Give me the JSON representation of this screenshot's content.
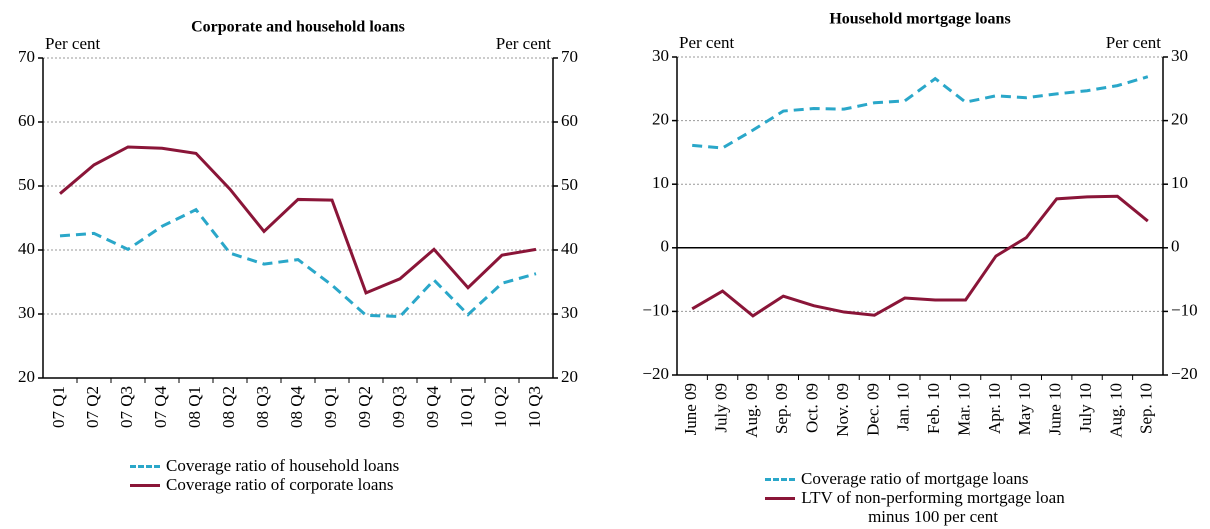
{
  "chart_data": [
    {
      "type": "line",
      "title": "Corporate and household loans",
      "y_axis_label": "Per cent",
      "y2_axis_label": "Per cent",
      "categories": [
        "07 Q1",
        "07 Q2",
        "07 Q3",
        "07 Q4",
        "08 Q1",
        "08 Q2",
        "08 Q3",
        "08 Q4",
        "09 Q1",
        "09 Q2",
        "09 Q3",
        "09 Q4",
        "10 Q1",
        "10 Q2",
        "10 Q3"
      ],
      "series": [
        {
          "name": "Coverage ratio of household loans",
          "color": "#2aa7c9",
          "dashed": true,
          "values": [
            42.2,
            42.6,
            40.1,
            43.7,
            46.3,
            39.5,
            37.8,
            38.5,
            34.5,
            29.8,
            29.6,
            35.3,
            29.9,
            34.8,
            36.3
          ]
        },
        {
          "name": "Coverage ratio of corporate loans",
          "color": "#8a1538",
          "dashed": false,
          "values": [
            48.8,
            53.3,
            56.1,
            55.9,
            55.1,
            49.5,
            42.9,
            47.9,
            47.8,
            33.3,
            35.5,
            40.1,
            34.1,
            39.2,
            40.1
          ]
        }
      ],
      "ylim": [
        20,
        70
      ],
      "yticks": [
        20,
        30,
        40,
        50,
        60,
        70
      ],
      "y2lim": [
        20,
        70
      ],
      "y2ticks": [
        20,
        30,
        40,
        50,
        60,
        70
      ],
      "grid": true
    },
    {
      "type": "line",
      "title": "Household mortgage loans",
      "y_axis_label": "Per cent",
      "y2_axis_label": "Per cent",
      "categories": [
        "June 09",
        "July 09",
        "Aug. 09",
        "Sep. 09",
        "Oct. 09",
        "Nov. 09",
        "Dec. 09",
        "Jan. 10",
        "Feb. 10",
        "Mar. 10",
        "Apr. 10",
        "May 10",
        "June 10",
        "July 10",
        "Aug. 10",
        "Sep. 10"
      ],
      "series": [
        {
          "name": "Coverage ratio of mortgage loans",
          "color": "#2aa7c9",
          "dashed": true,
          "values": [
            16.1,
            15.7,
            18.5,
            21.5,
            21.9,
            21.8,
            22.8,
            23.1,
            26.6,
            22.9,
            23.9,
            23.6,
            24.2,
            24.7,
            25.5,
            26.9
          ]
        },
        {
          "name": "LTV of non-performing mortgage loan minus 100 per cent",
          "color": "#8a1538",
          "dashed": false,
          "values": [
            -9.6,
            -6.8,
            -10.7,
            -7.6,
            -9.1,
            -10.1,
            -10.6,
            -7.9,
            -8.2,
            -8.2,
            -1.3,
            1.6,
            7.7,
            8.0,
            8.1,
            4.2
          ]
        }
      ],
      "ylim": [
        -20,
        30
      ],
      "yticks": [
        {
          "value": -20,
          "label": "−20"
        },
        {
          "value": -10,
          "label": "−10"
        },
        0,
        10,
        20,
        30
      ],
      "y2lim": [
        -20,
        30
      ],
      "y2ticks": [
        {
          "value": -20,
          "label": "−20"
        },
        {
          "value": -10,
          "label": "−10"
        },
        0,
        10,
        20,
        30
      ],
      "grid": true
    }
  ]
}
